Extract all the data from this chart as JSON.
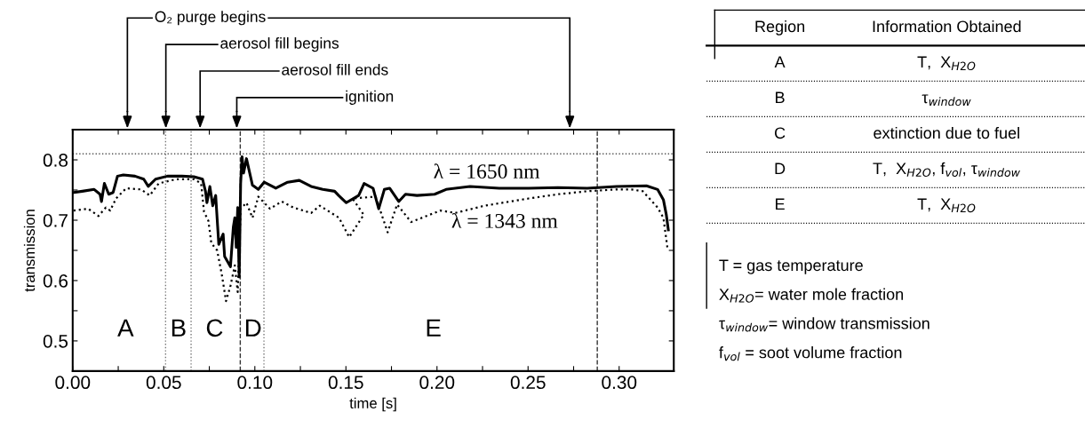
{
  "chart_data": [
    {
      "type": "line",
      "xlabel": "time [s]",
      "ylabel": "transmission",
      "xlim": [
        0,
        0.33
      ],
      "ylim": [
        0.45,
        0.85
      ],
      "xticks": [
        {
          "value": 0,
          "label": "0.00"
        },
        {
          "value": 0.025,
          "label": null
        },
        {
          "value": 0.05,
          "label": "0.05"
        },
        {
          "value": 0.075,
          "label": null
        },
        {
          "value": 0.1,
          "label": "0.10"
        },
        {
          "value": 0.125,
          "label": null
        },
        {
          "value": 0.15,
          "label": "0.15"
        },
        {
          "value": 0.175,
          "label": null
        },
        {
          "value": 0.2,
          "label": "0.20"
        },
        {
          "value": 0.225,
          "label": null
        },
        {
          "value": 0.25,
          "label": "0.25"
        },
        {
          "value": 0.275,
          "label": null
        },
        {
          "value": 0.3,
          "label": "0.30"
        }
      ],
      "yticks": [
        {
          "value": 0.5,
          "label": "0.5"
        },
        {
          "value": 0.55,
          "label": null
        },
        {
          "value": 0.6,
          "label": "0.6"
        },
        {
          "value": 0.65,
          "label": null
        },
        {
          "value": 0.7,
          "label": "0.7"
        },
        {
          "value": 0.75,
          "label": null
        },
        {
          "value": 0.8,
          "label": "0.8"
        }
      ],
      "grid": false,
      "legend": false,
      "series": [
        {
          "name": "λ = 1650 nm",
          "color": "#000000",
          "line_style": "solid",
          "x": [
            0.0005,
            0.0053,
            0.0118,
            0.015,
            0.0158,
            0.0174,
            0.0198,
            0.0222,
            0.0246,
            0.0278,
            0.0342,
            0.039,
            0.0415,
            0.0455,
            0.052,
            0.06,
            0.0665,
            0.0713,
            0.0729,
            0.0737,
            0.0753,
            0.0769,
            0.0785,
            0.0802,
            0.0826,
            0.0834,
            0.0866,
            0.0882,
            0.089,
            0.0898,
            0.0906,
            0.0914,
            0.0922,
            0.093,
            0.0938,
            0.0954,
            0.0987,
            0.1019,
            0.1051,
            0.1115,
            0.118,
            0.1244,
            0.1309,
            0.1373,
            0.1438,
            0.146,
            0.1502,
            0.157,
            0.16,
            0.1649,
            0.168,
            0.1711,
            0.174,
            0.179,
            0.1827,
            0.189,
            0.1987,
            0.205,
            0.2181,
            0.2342,
            0.2503,
            0.2664,
            0.2825,
            0.2986,
            0.315,
            0.3211,
            0.3243,
            0.3259,
            0.327
          ],
          "values": [
            0.746,
            0.748,
            0.751,
            0.743,
            0.731,
            0.761,
            0.743,
            0.746,
            0.773,
            0.775,
            0.773,
            0.768,
            0.756,
            0.768,
            0.773,
            0.773,
            0.772,
            0.768,
            0.748,
            0.729,
            0.756,
            0.724,
            0.741,
            0.66,
            0.677,
            0.64,
            0.623,
            0.689,
            0.704,
            0.655,
            0.721,
            0.606,
            0.761,
            0.805,
            0.778,
            0.802,
            0.758,
            0.751,
            0.763,
            0.753,
            0.763,
            0.766,
            0.756,
            0.751,
            0.748,
            0.741,
            0.729,
            0.741,
            0.761,
            0.753,
            0.719,
            0.751,
            0.753,
            0.731,
            0.743,
            0.741,
            0.743,
            0.751,
            0.756,
            0.753,
            0.753,
            0.754,
            0.753,
            0.756,
            0.757,
            0.751,
            0.734,
            0.709,
            0.684
          ]
        },
        {
          "name": "λ = 1343 nm",
          "color": "#000000",
          "line_style": "dotted",
          "x": [
            0.0005,
            0.0085,
            0.0142,
            0.0182,
            0.0206,
            0.0238,
            0.0294,
            0.0375,
            0.0423,
            0.0472,
            0.0568,
            0.0665,
            0.0705,
            0.0721,
            0.0745,
            0.0761,
            0.0793,
            0.0818,
            0.0842,
            0.0866,
            0.089,
            0.0906,
            0.0922,
            0.0954,
            0.0987,
            0.1019,
            0.1083,
            0.1148,
            0.1212,
            0.1309,
            0.1357,
            0.1462,
            0.1518,
            0.1598,
            0.1536,
            0.1663,
            0.1729,
            0.1781,
            0.1858,
            0.2019,
            0.21,
            0.2261,
            0.2503,
            0.2664,
            0.2825,
            0.2986,
            0.3067,
            0.313,
            0.3211,
            0.3243,
            0.3267
          ],
          "values": [
            0.716,
            0.719,
            0.707,
            0.721,
            0.716,
            0.736,
            0.753,
            0.751,
            0.741,
            0.761,
            0.768,
            0.768,
            0.761,
            0.714,
            0.699,
            0.662,
            0.65,
            0.611,
            0.566,
            0.591,
            0.625,
            0.581,
            0.719,
            0.729,
            0.704,
            0.739,
            0.719,
            0.731,
            0.721,
            0.712,
            0.724,
            0.704,
            0.672,
            0.709,
            0.736,
            0.739,
            0.68,
            0.726,
            0.697,
            0.716,
            0.712,
            0.724,
            0.736,
            0.743,
            0.748,
            0.751,
            0.751,
            0.748,
            0.721,
            0.704,
            0.65
          ]
        }
      ],
      "ref_lines": [
        {
          "axis": "y",
          "value": 0.81,
          "color": "#555555",
          "line_style": "dotted"
        },
        {
          "axis": "x",
          "value": 0.051,
          "color": "#777777",
          "line_style": "dotted"
        },
        {
          "axis": "x",
          "value": 0.065,
          "color": "#777777",
          "line_style": "dotted"
        },
        {
          "axis": "x",
          "value": 0.092,
          "color": "#333333",
          "line_style": "dashed"
        },
        {
          "axis": "x",
          "value": 0.105,
          "color": "#777777",
          "line_style": "dotted"
        },
        {
          "axis": "x",
          "value": 0.288,
          "color": "#333333",
          "line_style": "dashed"
        }
      ],
      "annotations": [
        "O₂ purge begins",
        "aerosol fill begins",
        "aerosol fill ends",
        "ignition",
        "A",
        "B",
        "C",
        "D",
        "E"
      ]
    },
    {
      "type": "other",
      "annotations": [
        "Region",
        "Information Obtained",
        "A",
        "T,  X$_{H2O}$",
        "B",
        "τ$_{window}$",
        "C",
        "extinction due to fuel",
        "D",
        "T,  X$_{H2O}$, f$_{vol}$, τ$_{window}$",
        "E",
        "T,  X$_{H2O}$",
        "T = gas temperature",
        "X$_{H2O}$= water mole fraction",
        "τ$_{window}$= window transmission",
        "f$_{vol}$ = soot volume fraction"
      ]
    }
  ]
}
